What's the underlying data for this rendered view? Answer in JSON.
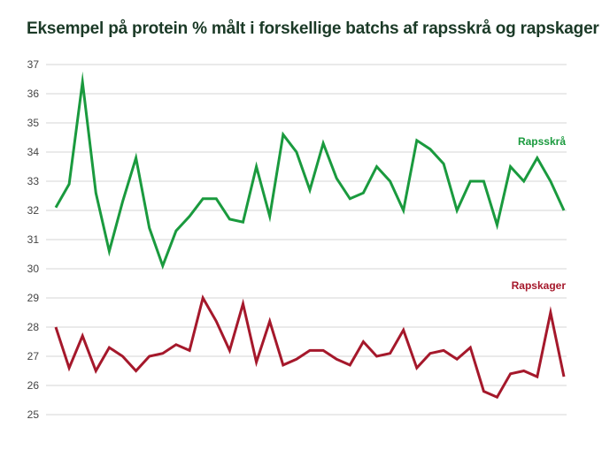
{
  "chart_data": {
    "type": "line",
    "title": "Eksempel på protein % målt i forskellige batchs af rapsskrå og rapskager",
    "xlabel": "",
    "ylabel": "",
    "ylim": [
      25,
      37
    ],
    "yticks": [
      25,
      26,
      27,
      28,
      29,
      30,
      31,
      32,
      33,
      34,
      35,
      36,
      37
    ],
    "grid": true,
    "x": [
      1,
      2,
      3,
      4,
      5,
      6,
      7,
      8,
      9,
      10,
      11,
      12,
      13,
      14,
      15,
      16,
      17,
      18,
      19,
      20,
      21,
      22,
      23,
      24,
      25,
      26,
      27,
      28,
      29,
      30,
      31,
      32,
      33,
      34,
      35,
      36,
      37,
      38,
      39
    ],
    "series": [
      {
        "name": "Rapsskrå",
        "color": "#1a9a3e",
        "values": [
          32.1,
          32.9,
          36.4,
          32.6,
          30.6,
          32.3,
          33.8,
          31.4,
          30.1,
          31.3,
          31.8,
          32.4,
          32.4,
          31.7,
          31.6,
          33.5,
          31.8,
          34.6,
          34.0,
          32.7,
          34.3,
          33.1,
          32.4,
          32.6,
          33.5,
          33.0,
          32.0,
          34.4,
          34.1,
          33.6,
          32.0,
          33.0,
          33.0,
          31.5,
          33.5,
          33.0,
          33.8,
          33.0,
          32.0
        ]
      },
      {
        "name": "Rapskager",
        "color": "#a5182b",
        "values": [
          28.0,
          26.6,
          27.7,
          26.5,
          27.3,
          27.0,
          26.5,
          27.0,
          27.1,
          27.4,
          27.2,
          29.0,
          28.2,
          27.2,
          28.8,
          26.8,
          28.2,
          26.7,
          26.9,
          27.2,
          27.2,
          26.9,
          26.7,
          27.5,
          27.0,
          27.1,
          27.9,
          26.6,
          27.1,
          27.2,
          26.9,
          27.3,
          25.8,
          25.6,
          26.4,
          26.5,
          26.3,
          28.5,
          26.3
        ]
      }
    ]
  }
}
